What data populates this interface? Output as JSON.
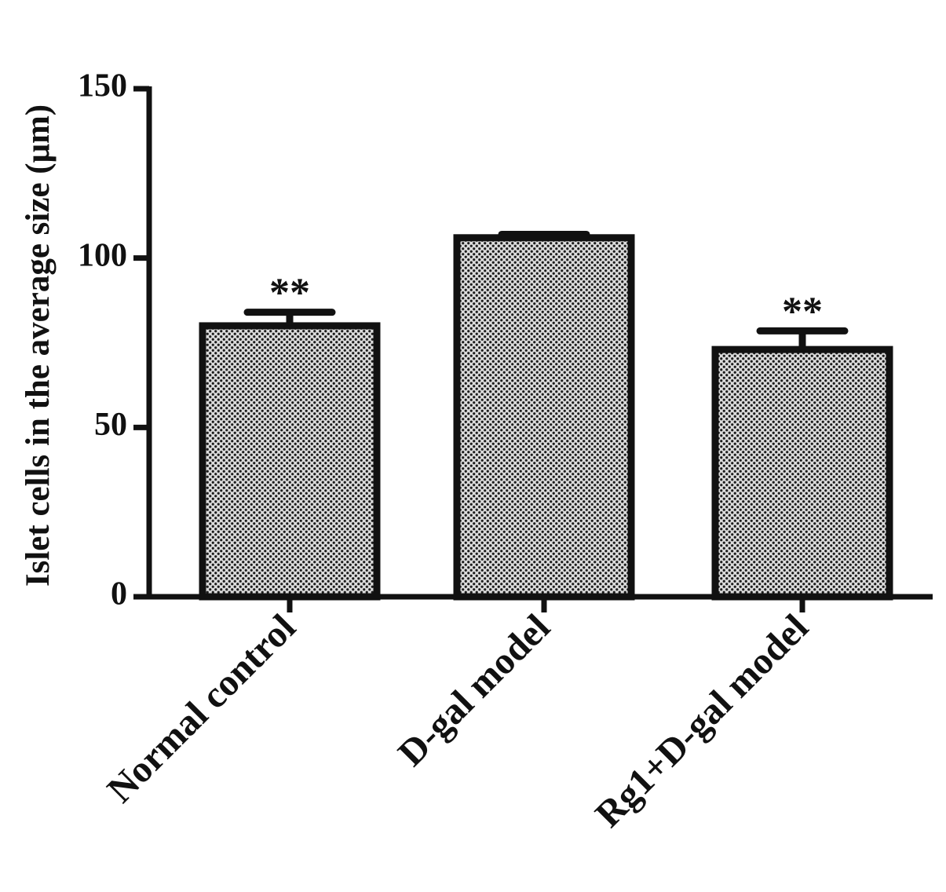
{
  "chart_data": {
    "type": "bar",
    "title": "",
    "xlabel": "",
    "ylabel": "Islet cells in the average size (μm)",
    "categories": [
      "Normal control",
      "D-gal model",
      "Rg1+D-gal model"
    ],
    "values": [
      80,
      106,
      73
    ],
    "error": [
      4,
      1,
      5.5
    ],
    "annotations": [
      "**",
      "",
      "**"
    ],
    "ylim": [
      0,
      150
    ],
    "yticks": [
      0,
      50,
      100,
      150
    ],
    "ytick_labels": [
      "0",
      "50",
      "100",
      "150"
    ],
    "grid": false,
    "legend": "none",
    "colors": {
      "axis": "#111111",
      "bar_edge": "#111111",
      "bar_fill_dot": "#222222",
      "bar_fill_bg": "#dddddd"
    }
  }
}
